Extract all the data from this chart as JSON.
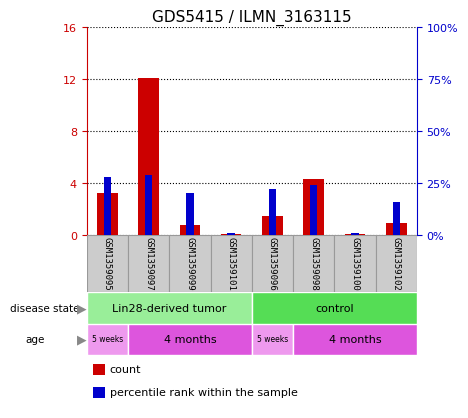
{
  "title": "GDS5415 / ILMN_3163115",
  "samples": [
    "GSM1359095",
    "GSM1359097",
    "GSM1359099",
    "GSM1359101",
    "GSM1359096",
    "GSM1359098",
    "GSM1359100",
    "GSM1359102"
  ],
  "count_values": [
    3.2,
    12.1,
    0.8,
    0.05,
    1.5,
    4.3,
    0.05,
    0.9
  ],
  "percentile_values": [
    28,
    29,
    20,
    1,
    22,
    24,
    1,
    16
  ],
  "ylim_left": [
    0,
    16
  ],
  "ylim_right": [
    0,
    100
  ],
  "yticks_left": [
    0,
    4,
    8,
    12,
    16
  ],
  "yticks_right": [
    0,
    25,
    50,
    75,
    100
  ],
  "count_color": "#cc0000",
  "percentile_color": "#0000cc",
  "disease_state_labels": [
    "Lin28-derived tumor",
    "control"
  ],
  "disease_state_color1": "#99ee99",
  "disease_state_color2": "#55dd55",
  "age_label_small": "5 weeks",
  "age_label_large": "4 months",
  "age_color_light": "#ee99ee",
  "age_color_dark": "#dd55dd",
  "sample_box_color": "#cccccc",
  "sample_box_edge": "#999999",
  "left_label_color": "#cc0000",
  "right_label_color": "#0000cc",
  "disease_label": "disease state",
  "age_label": "age",
  "title_fontsize": 11,
  "tick_fontsize": 8,
  "sample_fontsize": 6.5,
  "row_fontsize": 8,
  "legend_fontsize": 8
}
